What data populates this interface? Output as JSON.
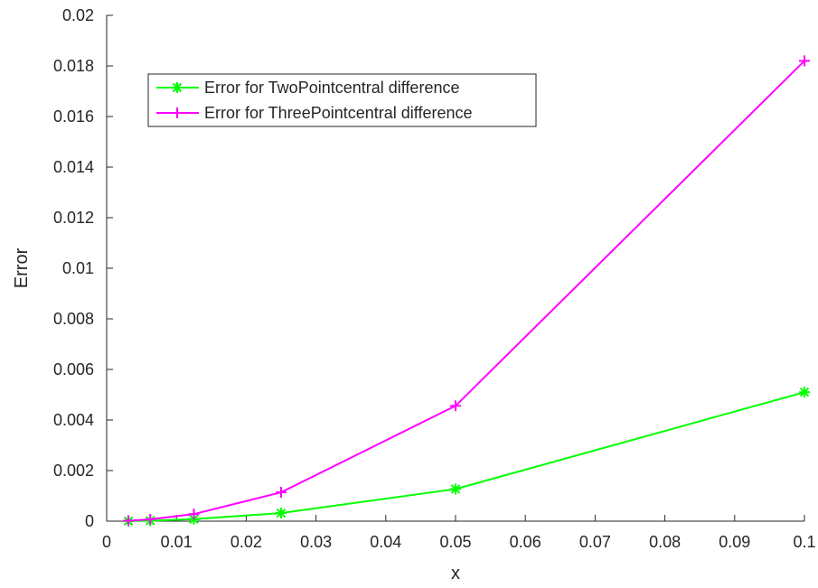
{
  "chart_data": {
    "type": "line",
    "xlabel": "x",
    "ylabel": "Error",
    "xlim": [
      0,
      0.1
    ],
    "ylim": [
      0,
      0.02
    ],
    "x_ticks": [
      "0",
      "0.01",
      "0.02",
      "0.03",
      "0.04",
      "0.05",
      "0.06",
      "0.07",
      "0.08",
      "0.09",
      "0.1"
    ],
    "y_ticks": [
      "0",
      "0.002",
      "0.004",
      "0.006",
      "0.008",
      "0.01",
      "0.012",
      "0.014",
      "0.016",
      "0.018",
      "0.02"
    ],
    "grid": false,
    "legend_position": "top-left",
    "series": [
      {
        "name": "Error for TwoPointcentral difference",
        "color": "#00ff00",
        "marker": "asterisk",
        "x": [
          0.003125,
          0.00625,
          0.0125,
          0.025,
          0.05,
          0.1
        ],
        "y": [
          5e-06,
          2e-05,
          8e-05,
          0.00032,
          0.00127,
          0.0051
        ]
      },
      {
        "name": "Error for ThreePointcentral difference",
        "color": "#ff00ff",
        "marker": "plus",
        "x": [
          0.003125,
          0.00625,
          0.0125,
          0.025,
          0.05,
          0.1
        ],
        "y": [
          2e-05,
          7e-05,
          0.00028,
          0.00114,
          0.00456,
          0.0182
        ]
      }
    ]
  }
}
